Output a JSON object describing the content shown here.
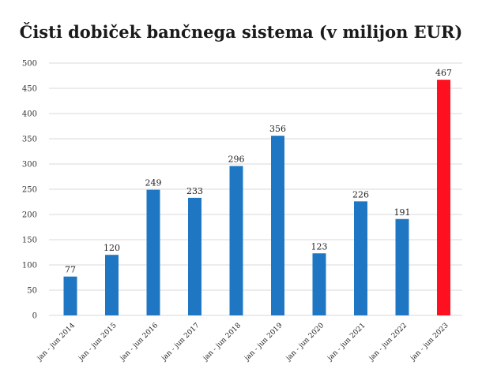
{
  "chart_data": {
    "type": "bar",
    "title": "Čisti dobiček bančnega sistema (v milijon EUR)",
    "xlabel": "",
    "ylabel": "",
    "ylim": [
      0,
      500
    ],
    "y_ticks": [
      0,
      50,
      100,
      150,
      200,
      250,
      300,
      350,
      400,
      450,
      500
    ],
    "grid": true,
    "categories": [
      "jan - jun 2014",
      "jan - jun 2015",
      "jan - jun 2016",
      "jan - jun 2017",
      "jan - jun 2018",
      "jan - jun 2019",
      "jan - jun 2020",
      "jan - jun 2021",
      "jan - jun 2022",
      "jan - jun 2023"
    ],
    "values": [
      77,
      120,
      249,
      233,
      296,
      356,
      123,
      226,
      191,
      467
    ],
    "bar_colors": [
      "#1f77c4",
      "#1f77c4",
      "#1f77c4",
      "#1f77c4",
      "#1f77c4",
      "#1f77c4",
      "#1f77c4",
      "#1f77c4",
      "#1f77c4",
      "#ff1020"
    ],
    "data_labels": [
      "77",
      "120",
      "249",
      "233",
      "296",
      "356",
      "123",
      "226",
      "191",
      "467"
    ]
  }
}
